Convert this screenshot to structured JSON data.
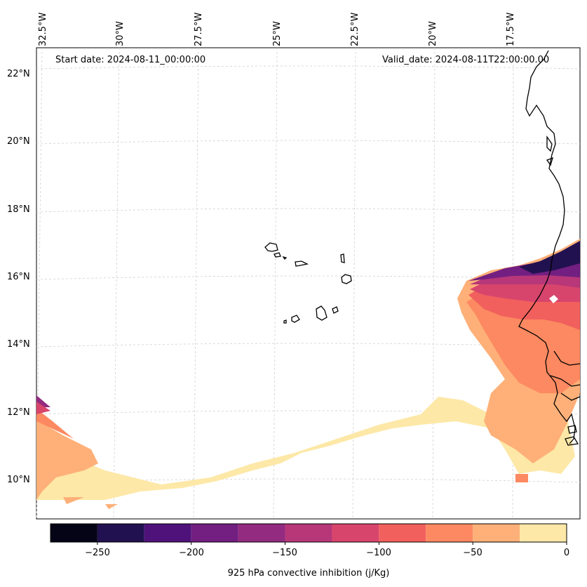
{
  "map": {
    "start_label": "Start date: 2024-08-11_00:00:00",
    "valid_label": "Valid_date: 2024-08-11T22:00:00.00",
    "lon_labels": [
      "32.5°W",
      "30°W",
      "27.5°W",
      "25°W",
      "22.5°W",
      "20°W",
      "17.5°W"
    ],
    "lat_labels": [
      "22°N",
      "20°N",
      "18°N",
      "16°N",
      "14°N",
      "12°N",
      "10°N"
    ],
    "variable": "925 hPa convective inhibition (j/Kg)"
  },
  "colorbar": {
    "label": "925 hPa convective inhibition (j/Kg)",
    "ticks": [
      "−250",
      "−200",
      "−150",
      "−100",
      "−50",
      "0"
    ],
    "levels": [
      -275,
      -250,
      -225,
      -200,
      -175,
      -150,
      -125,
      -100,
      -75,
      -50,
      -25,
      0
    ],
    "colors": [
      "#050416",
      "#221150",
      "#4f127b",
      "#721f81",
      "#932b80",
      "#b73779",
      "#d8456c",
      "#f1605d",
      "#fc8961",
      "#feb078",
      "#fde8a7"
    ]
  }
}
